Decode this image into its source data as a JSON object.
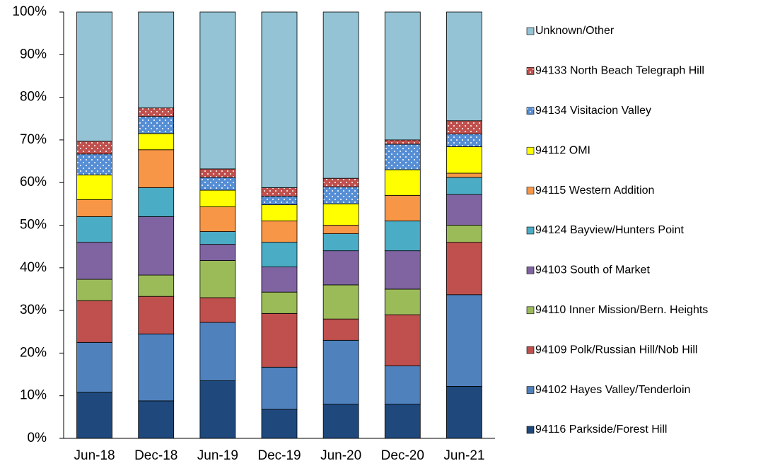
{
  "chart_data": {
    "type": "stacked_bar_percent",
    "categories": [
      "Jun-18",
      "Dec-18",
      "Jun-19",
      "Dec-19",
      "Jun-20",
      "Dec-20",
      "Jun-21"
    ],
    "ylim": [
      0,
      100
    ],
    "yticks": [
      {
        "value": 0,
        "label": "0%"
      },
      {
        "value": 10,
        "label": "10%"
      },
      {
        "value": 20,
        "label": "20%"
      },
      {
        "value": 30,
        "label": "30%"
      },
      {
        "value": 40,
        "label": "40%"
      },
      {
        "value": 50,
        "label": "50%"
      },
      {
        "value": 60,
        "label": "60%"
      },
      {
        "value": 70,
        "label": "70%"
      },
      {
        "value": 80,
        "label": "80%"
      },
      {
        "value": 90,
        "label": "90%"
      },
      {
        "value": 100,
        "label": "100%"
      }
    ],
    "grid": false,
    "legend": "right",
    "series": [
      {
        "name": "94116 Parkside/Forest Hill",
        "color": "#1f497d",
        "values": [
          10.8,
          8.8,
          13.5,
          6.8,
          8,
          8,
          12.2
        ]
      },
      {
        "name": "94102 Hayes Valley/Tenderloin",
        "color": "#4f81bd",
        "values": [
          11.7,
          15.7,
          13.7,
          9.9,
          15,
          9,
          21.5
        ]
      },
      {
        "name": "94109 Polk/Russian Hill/Nob Hill",
        "color": "#c0504d",
        "values": [
          9.8,
          8.8,
          5.8,
          12.6,
          5,
          12,
          12.3
        ]
      },
      {
        "name": "94110 Inner Mission/Bern. Heights",
        "color": "#9bbb59",
        "values": [
          5.0,
          5.0,
          8.7,
          5.0,
          8,
          6,
          4.0
        ]
      },
      {
        "name": "94103 South of Market",
        "color": "#8064a2",
        "values": [
          8.7,
          13.7,
          3.8,
          5.9,
          8,
          9,
          7.2
        ]
      },
      {
        "name": "94124 Bayview/Hunters Point",
        "color": "#4bacc6",
        "values": [
          6.0,
          6.8,
          3.0,
          5.8,
          4,
          7,
          4.0
        ]
      },
      {
        "name": "94115 Western Addition",
        "color": "#f79646",
        "values": [
          4.0,
          8.9,
          5.8,
          5.0,
          2,
          6,
          1.0
        ]
      },
      {
        "name": "94112 OMI",
        "color": "#ffff00",
        "values": [
          5.8,
          3.8,
          3.9,
          3.8,
          5,
          6,
          6.2
        ]
      },
      {
        "name": "94134 Visitacion Valley",
        "color": "#558ed5",
        "pattern": "dots",
        "values": [
          4.9,
          4.0,
          3.0,
          2.0,
          4,
          6,
          3.0
        ]
      },
      {
        "name": "94133 North Beach Telegraph Hill",
        "color": "#c0504d",
        "pattern": "dots",
        "values": [
          3.0,
          2.0,
          2.0,
          2.0,
          2,
          1,
          3.1
        ]
      },
      {
        "name": "Unknown/Other",
        "color": "#93c3d4",
        "values": [
          30.3,
          22.5,
          36.8,
          41.2,
          39,
          30,
          25.5
        ]
      }
    ]
  }
}
